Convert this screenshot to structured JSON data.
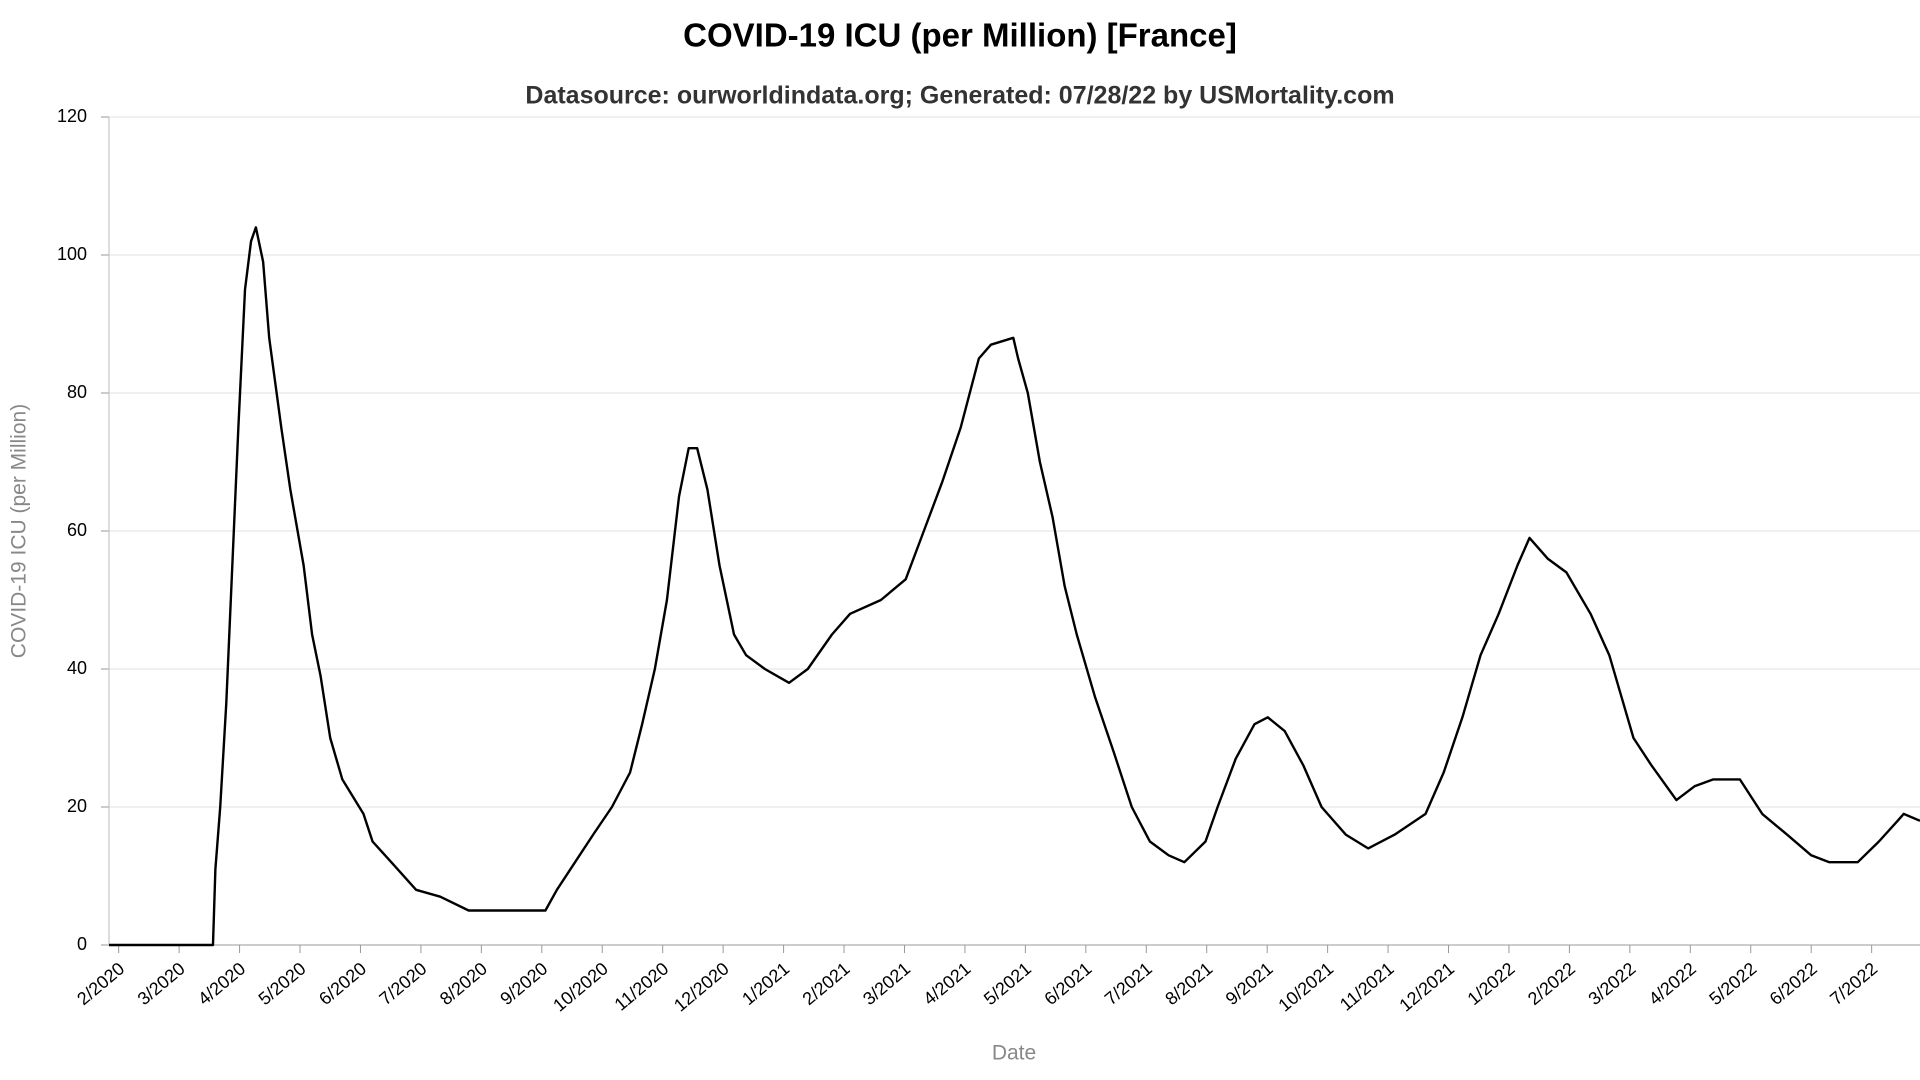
{
  "chart_data": {
    "type": "line",
    "title": "COVID-19 ICU (per Million) [France]",
    "subtitle": "Datasource: ourworldindata.org; Generated: 07/28/22 by USMortality.com",
    "x_label": "Date",
    "y_label": "COVID-19 ICU (per Million)",
    "color": "#000000",
    "grid": true,
    "xlim": [
      -0.16,
      29.8
    ],
    "ylim": [
      0,
      120
    ],
    "yticks": [
      0,
      20,
      40,
      60,
      80,
      100,
      120
    ],
    "xticks": [
      {
        "value": 0,
        "label": "2/2020"
      },
      {
        "value": 1,
        "label": "3/2020"
      },
      {
        "value": 2,
        "label": "4/2020"
      },
      {
        "value": 3,
        "label": "5/2020"
      },
      {
        "value": 4,
        "label": "6/2020"
      },
      {
        "value": 5,
        "label": "7/2020"
      },
      {
        "value": 6,
        "label": "8/2020"
      },
      {
        "value": 7,
        "label": "9/2020"
      },
      {
        "value": 8,
        "label": "10/2020"
      },
      {
        "value": 9,
        "label": "11/2020"
      },
      {
        "value": 10,
        "label": "12/2020"
      },
      {
        "value": 11,
        "label": "1/2021"
      },
      {
        "value": 12,
        "label": "2/2021"
      },
      {
        "value": 13,
        "label": "3/2021"
      },
      {
        "value": 14,
        "label": "4/2021"
      },
      {
        "value": 15,
        "label": "5/2021"
      },
      {
        "value": 16,
        "label": "6/2021"
      },
      {
        "value": 17,
        "label": "7/2021"
      },
      {
        "value": 18,
        "label": "8/2021"
      },
      {
        "value": 19,
        "label": "9/2021"
      },
      {
        "value": 20,
        "label": "10/2021"
      },
      {
        "value": 21,
        "label": "11/2021"
      },
      {
        "value": 22,
        "label": "12/2021"
      },
      {
        "value": 23,
        "label": "1/2022"
      },
      {
        "value": 24,
        "label": "2/2022"
      },
      {
        "value": 25,
        "label": "3/2022"
      },
      {
        "value": 26,
        "label": "4/2022"
      },
      {
        "value": 27,
        "label": "5/2022"
      },
      {
        "value": 28,
        "label": "6/2022"
      },
      {
        "value": 29,
        "label": "7/2022"
      }
    ],
    "x": [
      -0.16,
      1.56,
      1.6,
      1.68,
      1.78,
      1.88,
      1.98,
      2.09,
      2.19,
      2.27,
      2.39,
      2.49,
      2.69,
      2.84,
      3.06,
      3.2,
      3.34,
      3.5,
      3.7,
      4.05,
      4.2,
      4.51,
      4.92,
      5.32,
      5.79,
      7.06,
      7.25,
      7.55,
      7.85,
      8.16,
      8.46,
      8.66,
      8.87,
      9.07,
      9.27,
      9.43,
      9.57,
      9.74,
      9.94,
      10.18,
      10.38,
      10.69,
      11.09,
      11.4,
      11.8,
      12.1,
      12.61,
      13.02,
      13.32,
      13.62,
      13.93,
      14.23,
      14.43,
      14.8,
      14.88,
      15.04,
      15.24,
      15.45,
      15.65,
      15.85,
      16.15,
      16.46,
      16.76,
      17.06,
      17.37,
      17.63,
      17.98,
      18.18,
      18.48,
      18.79,
      19.01,
      19.29,
      19.6,
      19.9,
      20.3,
      20.67,
      21.11,
      21.62,
      21.92,
      22.23,
      22.53,
      22.83,
      23.14,
      23.34,
      23.64,
      23.95,
      24.35,
      24.66,
      24.86,
      25.06,
      25.36,
      25.77,
      26.07,
      26.38,
      26.82,
      27.19,
      27.6,
      28.0,
      28.3,
      28.77,
      29.12,
      29.43,
      29.53,
      29.8
    ],
    "values": [
      0,
      0,
      11,
      20,
      35,
      55,
      75,
      95,
      102,
      104,
      99,
      88,
      75,
      66,
      55,
      45,
      39,
      30,
      24,
      19,
      15,
      12,
      8,
      7,
      5,
      5,
      8,
      12,
      16,
      20,
      25,
      32,
      40,
      50,
      65,
      72,
      72,
      66,
      55,
      45,
      42,
      40,
      38,
      40,
      45,
      48,
      50,
      53,
      60,
      67,
      75,
      85,
      87,
      88,
      85,
      80,
      70,
      62,
      52,
      45,
      36,
      28,
      20,
      15,
      13,
      12,
      15,
      20,
      27,
      32,
      33,
      31,
      26,
      20,
      16,
      14,
      16,
      19,
      25,
      33,
      42,
      48,
      55,
      59,
      56,
      54,
      48,
      42,
      36,
      30,
      26,
      21,
      23,
      24,
      24,
      19,
      16,
      13,
      12,
      12,
      15,
      18,
      19,
      18
    ]
  }
}
